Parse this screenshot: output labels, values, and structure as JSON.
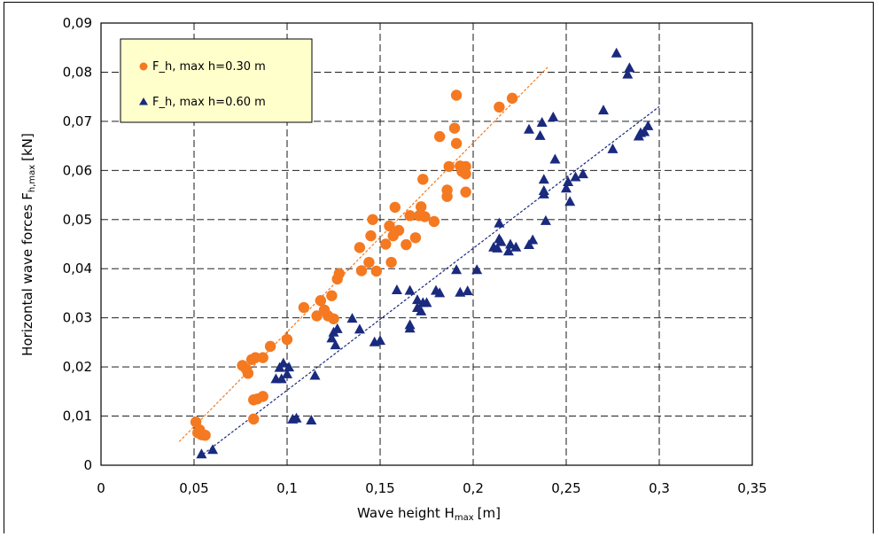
{
  "chart_data": {
    "type": "scatter",
    "xlabel": "Wave height H",
    "xlabel_sub": "max",
    "xlabel_unit": "[m]",
    "ylabel": "Horizontal wave forces F",
    "ylabel_sub": "h,max",
    "ylabel_unit": "[kN]",
    "xlim": [
      0,
      0.35
    ],
    "ylim": [
      0,
      0.09
    ],
    "xticks": [
      0,
      0.05,
      0.1,
      0.15,
      0.2,
      0.25,
      0.3,
      0.35
    ],
    "yticks": [
      0,
      0.01,
      0.02,
      0.03,
      0.04,
      0.05,
      0.06,
      0.07,
      0.08,
      0.09
    ],
    "xtick_labels": [
      "0",
      "0,05",
      "0,1",
      "0,15",
      "0,2",
      "0,25",
      "0,3",
      "0,35"
    ],
    "ytick_labels": [
      "0",
      "0,01",
      "0,02",
      "0,03",
      "0,04",
      "0,05",
      "0,06",
      "0,07",
      "0,08",
      "0,09"
    ],
    "grid": true,
    "legend_position": "top-left",
    "series": [
      {
        "name": "F_h, max h=0.30 m",
        "marker": "circle",
        "color": "#f47920",
        "trend": {
          "x": [
            0.042,
            0.24
          ],
          "y": [
            0.0048,
            0.081
          ]
        },
        "points": [
          [
            0.051,
            0.0088
          ],
          [
            0.052,
            0.0066
          ],
          [
            0.053,
            0.0072
          ],
          [
            0.054,
            0.0062
          ],
          [
            0.056,
            0.0061
          ],
          [
            0.076,
            0.0203
          ],
          [
            0.078,
            0.0196
          ],
          [
            0.079,
            0.0187
          ],
          [
            0.081,
            0.0215
          ],
          [
            0.082,
            0.0094
          ],
          [
            0.082,
            0.0133
          ],
          [
            0.083,
            0.0219
          ],
          [
            0.084,
            0.0135
          ],
          [
            0.087,
            0.014
          ],
          [
            0.087,
            0.0219
          ],
          [
            0.091,
            0.0242
          ],
          [
            0.1,
            0.0256
          ],
          [
            0.109,
            0.0321
          ],
          [
            0.116,
            0.0304
          ],
          [
            0.118,
            0.0335
          ],
          [
            0.12,
            0.0316
          ],
          [
            0.122,
            0.0304
          ],
          [
            0.124,
            0.0345
          ],
          [
            0.125,
            0.0298
          ],
          [
            0.127,
            0.0379
          ],
          [
            0.128,
            0.039
          ],
          [
            0.139,
            0.0443
          ],
          [
            0.14,
            0.0396
          ],
          [
            0.144,
            0.0413
          ],
          [
            0.145,
            0.0467
          ],
          [
            0.146,
            0.05
          ],
          [
            0.148,
            0.0395
          ],
          [
            0.153,
            0.045
          ],
          [
            0.155,
            0.0487
          ],
          [
            0.156,
            0.0413
          ],
          [
            0.157,
            0.0467
          ],
          [
            0.158,
            0.0525
          ],
          [
            0.16,
            0.0478
          ],
          [
            0.164,
            0.0449
          ],
          [
            0.166,
            0.0508
          ],
          [
            0.169,
            0.0463
          ],
          [
            0.171,
            0.0508
          ],
          [
            0.172,
            0.0526
          ],
          [
            0.173,
            0.0582
          ],
          [
            0.174,
            0.0506
          ],
          [
            0.179,
            0.0496
          ],
          [
            0.182,
            0.0669
          ],
          [
            0.186,
            0.056
          ],
          [
            0.186,
            0.0547
          ],
          [
            0.187,
            0.0608
          ],
          [
            0.19,
            0.0686
          ],
          [
            0.191,
            0.0753
          ],
          [
            0.191,
            0.0655
          ],
          [
            0.193,
            0.0609
          ],
          [
            0.194,
            0.0598
          ],
          [
            0.196,
            0.0608
          ],
          [
            0.196,
            0.0556
          ],
          [
            0.196,
            0.0593
          ],
          [
            0.214,
            0.0729
          ],
          [
            0.221,
            0.0747
          ]
        ]
      },
      {
        "name": "F_h, max h=0.60 m",
        "marker": "triangle",
        "color": "#1a2a7e",
        "trend": {
          "x": [
            0.053,
            0.3
          ],
          "y": [
            0.0017,
            0.073
          ]
        },
        "points": [
          [
            0.054,
            0.0022
          ],
          [
            0.06,
            0.0031
          ],
          [
            0.094,
            0.0175
          ],
          [
            0.096,
            0.0198
          ],
          [
            0.097,
            0.0175
          ],
          [
            0.098,
            0.0207
          ],
          [
            0.1,
            0.0185
          ],
          [
            0.101,
            0.0199
          ],
          [
            0.103,
            0.0093
          ],
          [
            0.105,
            0.0095
          ],
          [
            0.113,
            0.0091
          ],
          [
            0.115,
            0.0182
          ],
          [
            0.124,
            0.0258
          ],
          [
            0.125,
            0.027
          ],
          [
            0.126,
            0.0244
          ],
          [
            0.127,
            0.0277
          ],
          [
            0.135,
            0.0298
          ],
          [
            0.139,
            0.0276
          ],
          [
            0.147,
            0.025
          ],
          [
            0.15,
            0.0253
          ],
          [
            0.159,
            0.0356
          ],
          [
            0.166,
            0.0355
          ],
          [
            0.166,
            0.0285
          ],
          [
            0.166,
            0.0278
          ],
          [
            0.17,
            0.032
          ],
          [
            0.17,
            0.0336
          ],
          [
            0.172,
            0.0313
          ],
          [
            0.173,
            0.033
          ],
          [
            0.175,
            0.033
          ],
          [
            0.18,
            0.0355
          ],
          [
            0.182,
            0.035
          ],
          [
            0.191,
            0.0397
          ],
          [
            0.193,
            0.0351
          ],
          [
            0.197,
            0.0354
          ],
          [
            0.202,
            0.0397
          ],
          [
            0.211,
            0.0443
          ],
          [
            0.213,
            0.0441
          ],
          [
            0.214,
            0.046
          ],
          [
            0.214,
            0.0492
          ],
          [
            0.215,
            0.0454
          ],
          [
            0.219,
            0.0435
          ],
          [
            0.22,
            0.0449
          ],
          [
            0.223,
            0.0443
          ],
          [
            0.23,
            0.0448
          ],
          [
            0.23,
            0.0683
          ],
          [
            0.232,
            0.0458
          ],
          [
            0.236,
            0.067
          ],
          [
            0.237,
            0.0697
          ],
          [
            0.238,
            0.0558
          ],
          [
            0.238,
            0.0581
          ],
          [
            0.238,
            0.0551
          ],
          [
            0.239,
            0.0497
          ],
          [
            0.243,
            0.0708
          ],
          [
            0.244,
            0.0622
          ],
          [
            0.25,
            0.0563
          ],
          [
            0.251,
            0.0576
          ],
          [
            0.252,
            0.0536
          ],
          [
            0.255,
            0.0586
          ],
          [
            0.259,
            0.0592
          ],
          [
            0.27,
            0.0722
          ],
          [
            0.275,
            0.0643
          ],
          [
            0.277,
            0.0838
          ],
          [
            0.283,
            0.0795
          ],
          [
            0.284,
            0.0808
          ],
          [
            0.289,
            0.0669
          ],
          [
            0.29,
            0.0676
          ],
          [
            0.292,
            0.0678
          ],
          [
            0.294,
            0.069
          ]
        ]
      }
    ]
  }
}
